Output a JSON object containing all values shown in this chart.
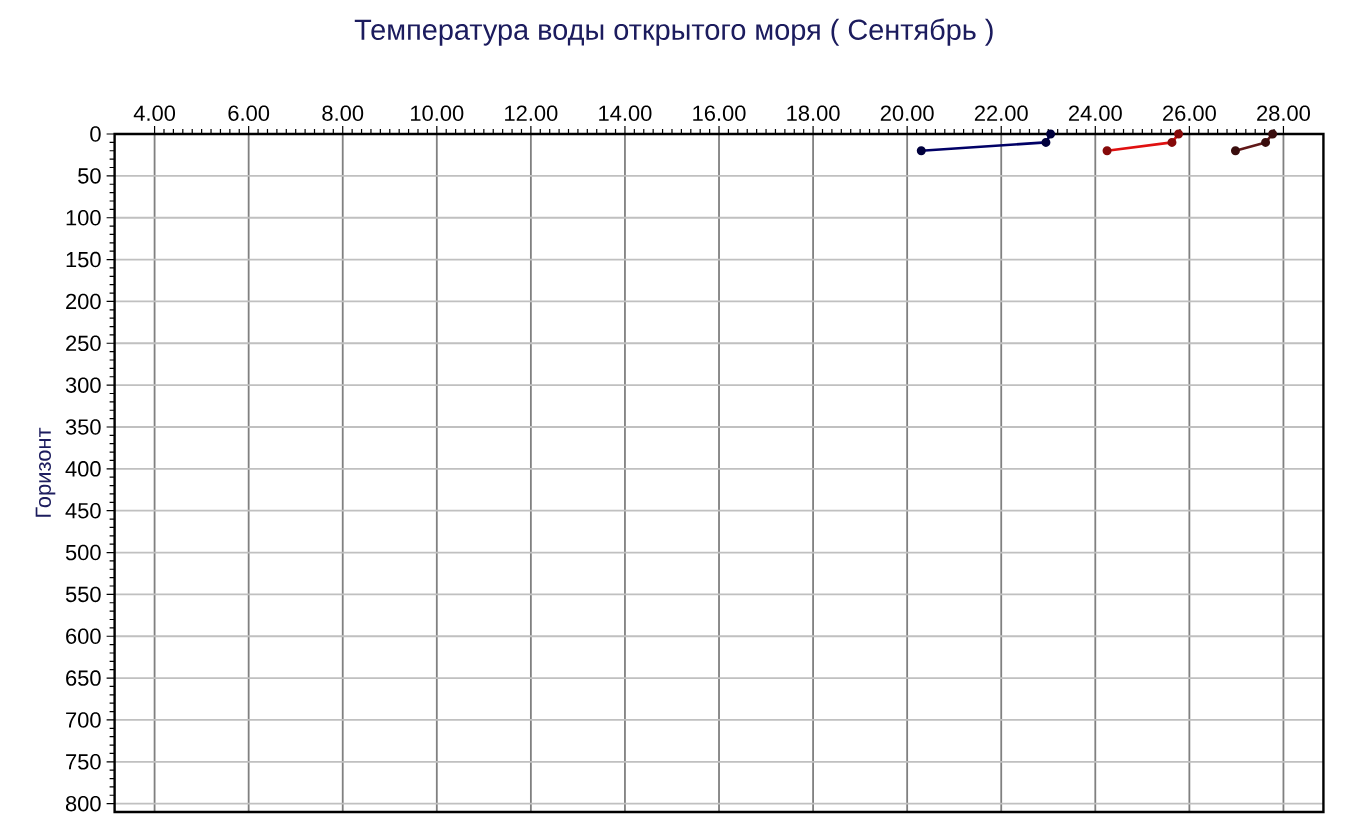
{
  "chart_data": {
    "type": "line",
    "title": "Температура воды открытого моря     ( Сентябрь )",
    "ylabel": "Горизонт",
    "series": [
      {
        "color": "#000066",
        "x": [
          20.3,
          22.95,
          23.05
        ],
        "values": [
          20,
          10,
          0
        ]
      },
      {
        "color": "#e01010",
        "x": [
          24.25,
          25.63,
          25.77
        ],
        "values": [
          20,
          10,
          0
        ]
      },
      {
        "color": "#601818",
        "x": [
          26.98,
          27.62,
          27.77
        ],
        "values": [
          20,
          10,
          0
        ]
      }
    ],
    "xlim": [
      3.15,
      28.85
    ],
    "xticks": [
      {
        "value": 4,
        "label": "4.00"
      },
      {
        "value": 6,
        "label": "6.00"
      },
      {
        "value": 8,
        "label": "8.00"
      },
      {
        "value": 10,
        "label": "10.00"
      },
      {
        "value": 12,
        "label": "12.00"
      },
      {
        "value": 14,
        "label": "14.00"
      },
      {
        "value": 16,
        "label": "16.00"
      },
      {
        "value": 18,
        "label": "18.00"
      },
      {
        "value": 20,
        "label": "20.00"
      },
      {
        "value": 22,
        "label": "22.00"
      },
      {
        "value": 24,
        "label": "24.00"
      },
      {
        "value": 26,
        "label": "26.00"
      },
      {
        "value": 28,
        "label": "28.00"
      }
    ],
    "ylim": [
      810,
      0
    ],
    "yticks": [
      0,
      50,
      100,
      150,
      200,
      250,
      300,
      350,
      400,
      450,
      500,
      550,
      600,
      650,
      700,
      750,
      800
    ],
    "grid": true,
    "marker": "circle",
    "line_style": "solid"
  }
}
